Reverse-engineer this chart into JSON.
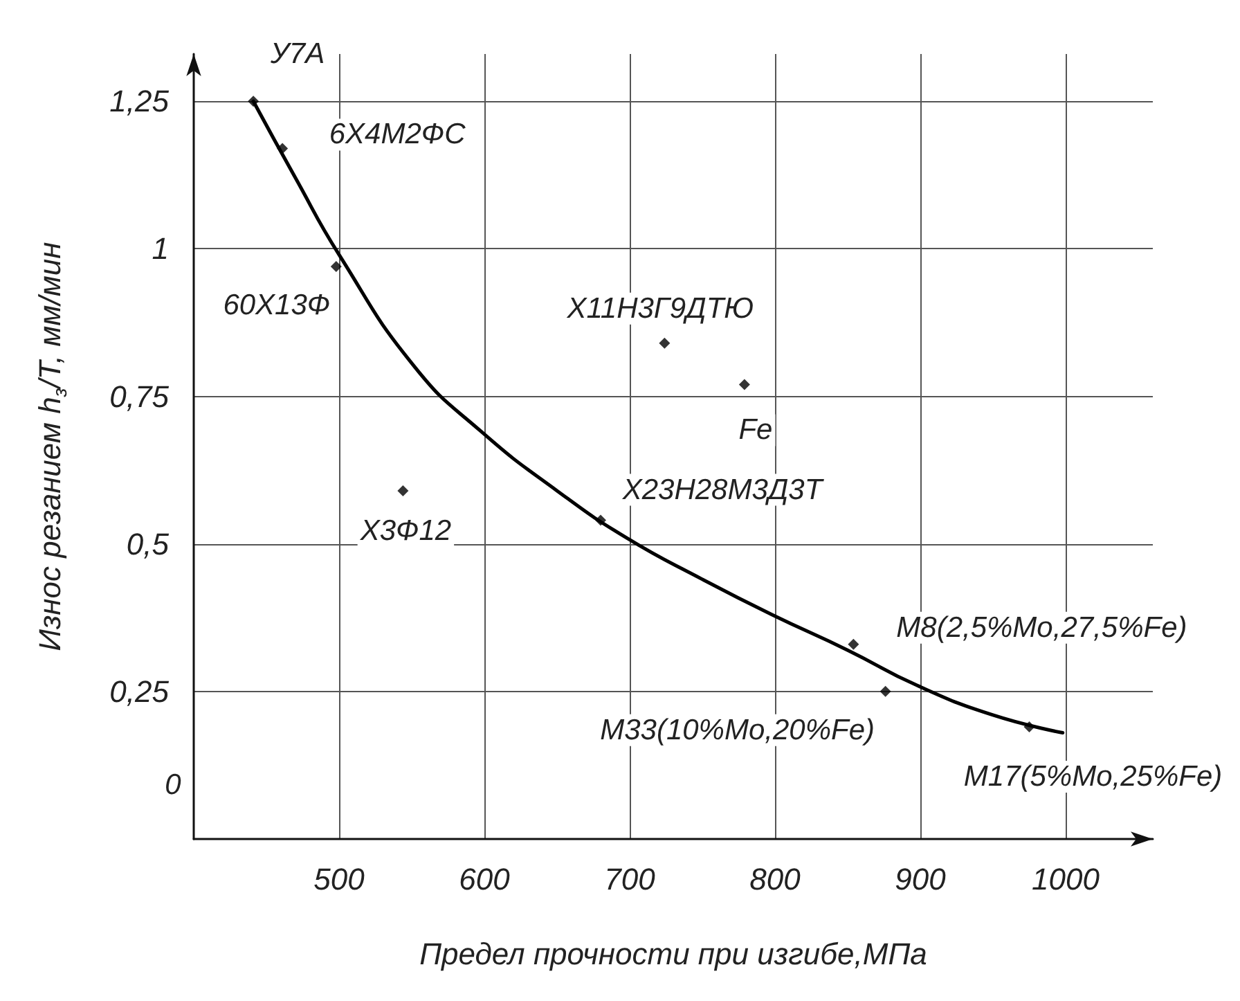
{
  "chart_data": {
    "type": "scatter",
    "xlabel": "Предел прочности при изгибе,МПа",
    "ylabel": "Износ резанием h$_{з}$/T, мм/мин",
    "xlim": [
      400,
      1060
    ],
    "ylim": [
      0,
      1.33
    ],
    "xticks": [
      500,
      600,
      700,
      800,
      900,
      1000
    ],
    "yticks": [
      {
        "value": 0.25,
        "label": "0,25"
      },
      {
        "value": 0.5,
        "label": "0,5"
      },
      {
        "value": 0.75,
        "label": "0,75"
      },
      {
        "value": 1,
        "label": "1"
      },
      {
        "value": 1.25,
        "label": "1,25"
      }
    ],
    "grid": true,
    "series": [
      {
        "type": "scatter",
        "marker": "diamond",
        "color": "#000000",
        "x": [
          441,
          461,
          498,
          544,
          680,
          724,
          779,
          854,
          876,
          975
        ],
        "values": [
          1.25,
          1.17,
          0.97,
          0.59,
          0.54,
          0.84,
          0.77,
          0.33,
          0.25,
          0.19
        ]
      },
      {
        "type": "line",
        "marker": "none",
        "color": "#000000",
        "x": [
          441,
          470,
          500,
          552,
          598,
          650,
          698,
          750,
          798,
          850,
          898,
          950,
          998
        ],
        "values": [
          1.25,
          1.12,
          0.99,
          0.8,
          0.69,
          0.59,
          0.51,
          0.44,
          0.38,
          0.32,
          0.26,
          0.21,
          0.18
        ]
      }
    ],
    "annotations": [
      {
        "text": "У7А",
        "x": 441,
        "y": 1.25
      },
      {
        "text": "6Х4М2ФС",
        "x": 461,
        "y": 1.17
      },
      {
        "text": "60Х13Ф",
        "x": 498,
        "y": 0.97
      },
      {
        "text": "Х3Ф12",
        "x": 544,
        "y": 0.59
      },
      {
        "text": "Х23Н28М3Д3Т",
        "x": 680,
        "y": 0.54
      },
      {
        "text": "Х11Н3Г9ДТЮ",
        "x": 724,
        "y": 0.84
      },
      {
        "text": "Fe",
        "x": 779,
        "y": 0.77
      },
      {
        "text": "М8(2,5%Mo,27,5%Fe)",
        "x": 854,
        "y": 0.33
      },
      {
        "text": "М33(10%Mo,20%Fe)",
        "x": 876,
        "y": 0.25
      },
      {
        "text": "М17(5%Mo,25%Fe)",
        "x": 975,
        "y": 0.19
      },
      "0"
    ]
  }
}
